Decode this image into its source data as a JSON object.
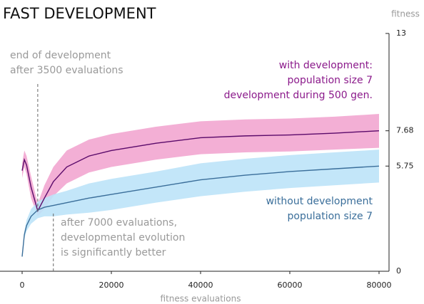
{
  "chart_data": {
    "type": "band-line",
    "title": "FAST DEVELOPMENT",
    "ylabel": "fitness",
    "xlabel": "fitness evaluations",
    "x": [
      0,
      500,
      1000,
      2000,
      3500,
      5000,
      7000,
      10000,
      15000,
      20000,
      30000,
      40000,
      50000,
      60000,
      70000,
      80000
    ],
    "xlim": [
      0,
      80000
    ],
    "xticks": [
      0,
      20000,
      40000,
      60000,
      80000
    ],
    "ylim": [
      0,
      13
    ],
    "yticks": [
      0,
      5.75,
      7.68,
      13
    ],
    "series": [
      {
        "name": [
          "with development:",
          "population size 7",
          "development during 500 gen."
        ],
        "color": "#5a0a6a",
        "band_color": "#f2a6d0",
        "label_color": "#8b1a8b",
        "values": [
          5.5,
          6.1,
          5.8,
          4.6,
          3.3,
          4.0,
          4.9,
          5.7,
          6.3,
          6.6,
          7.0,
          7.3,
          7.4,
          7.45,
          7.55,
          7.68
        ],
        "lower": [
          5.1,
          5.7,
          5.3,
          4.0,
          3.0,
          3.4,
          4.1,
          4.8,
          5.4,
          5.7,
          6.1,
          6.4,
          6.5,
          6.55,
          6.65,
          6.75
        ],
        "upper": [
          5.9,
          6.6,
          6.3,
          5.2,
          3.7,
          4.7,
          5.7,
          6.6,
          7.2,
          7.5,
          7.9,
          8.2,
          8.3,
          8.35,
          8.45,
          8.6
        ]
      },
      {
        "name": [
          "without development",
          "population size 7"
        ],
        "color": "#3a6e9a",
        "band_color": "#bde3f8",
        "label_color": "#3a6e9a",
        "values": [
          0.8,
          2.0,
          2.5,
          3.0,
          3.35,
          3.5,
          3.6,
          3.75,
          4.0,
          4.2,
          4.6,
          5.0,
          5.25,
          5.45,
          5.6,
          5.75
        ],
        "lower": [
          0.8,
          1.8,
          2.2,
          2.6,
          2.9,
          3.0,
          3.0,
          3.1,
          3.2,
          3.35,
          3.75,
          4.1,
          4.35,
          4.55,
          4.7,
          4.85
        ],
        "upper": [
          0.8,
          2.2,
          2.8,
          3.4,
          3.8,
          4.0,
          4.2,
          4.4,
          4.8,
          5.05,
          5.45,
          5.9,
          6.15,
          6.35,
          6.5,
          6.65
        ]
      }
    ],
    "annotations": [
      {
        "x": 3500,
        "lines": [
          "end of development",
          "after 3500 evaluations"
        ]
      },
      {
        "x": 7000,
        "lines": [
          "after 7000 evaluations,",
          "developmental evolution",
          "is significantly better"
        ]
      }
    ]
  }
}
